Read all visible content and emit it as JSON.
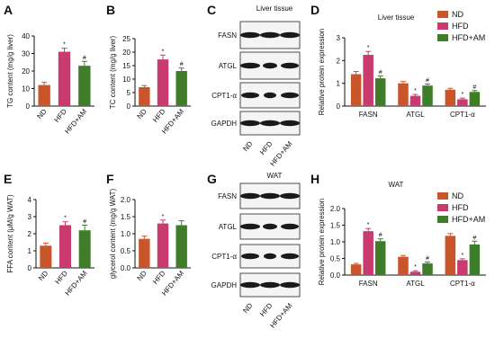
{
  "chart_data": [
    {
      "type": "bar",
      "panel_label": "A",
      "ylabel": "TG content (mg/g liver)",
      "categories": [
        "ND",
        "HFD",
        "HFD+AM"
      ],
      "values": [
        12,
        31,
        23
      ],
      "errors": [
        1.5,
        2,
        2.5
      ],
      "annotations": [
        null,
        "*",
        "#"
      ],
      "colors": [
        "#c9562a",
        "#c93a6e",
        "#3f7d2a"
      ],
      "ylim": [
        0,
        40
      ],
      "yticks": [
        0,
        10,
        20,
        30,
        40
      ]
    },
    {
      "type": "bar",
      "panel_label": "B",
      "ylabel": "TC content (mg/g liver)",
      "categories": [
        "ND",
        "HFD",
        "HFD+AM"
      ],
      "values": [
        7,
        17.3,
        13
      ],
      "errors": [
        0.6,
        1.6,
        1.1
      ],
      "annotations": [
        null,
        "*",
        "#"
      ],
      "colors": [
        "#c9562a",
        "#c93a6e",
        "#3f7d2a"
      ],
      "ylim": [
        0,
        25
      ],
      "yticks": [
        0,
        5,
        10,
        15,
        20,
        25
      ]
    },
    {
      "type": "grouped_bar",
      "panel_label": "D",
      "title": "Liver tissue",
      "ylabel": "Relative protein expression",
      "categories": [
        "FASN",
        "ATGL",
        "CPT1-α"
      ],
      "series": [
        {
          "name": "ND",
          "color": "#c9562a",
          "values": [
            1.4,
            1.0,
            0.72
          ],
          "errors": [
            0.12,
            0.08,
            0.06
          ],
          "annotations": [
            null,
            null,
            null
          ]
        },
        {
          "name": "HFD",
          "color": "#c93a6e",
          "values": [
            2.25,
            0.45,
            0.3
          ],
          "errors": [
            0.15,
            0.06,
            0.05
          ],
          "annotations": [
            "*",
            "*",
            "*"
          ]
        },
        {
          "name": "HFD+AM",
          "color": "#3f7d2a",
          "values": [
            1.22,
            0.9,
            0.62
          ],
          "errors": [
            0.1,
            0.07,
            0.06
          ],
          "annotations": [
            "#",
            "#",
            "#"
          ]
        }
      ],
      "ylim": [
        0,
        3
      ],
      "yticks": [
        0,
        1,
        2,
        3
      ]
    },
    {
      "type": "bar",
      "panel_label": "E",
      "ylabel": "FFA content (μM/g WAT)",
      "categories": [
        "ND",
        "HFD",
        "HFD+AM"
      ],
      "values": [
        1.3,
        2.5,
        2.2
      ],
      "errors": [
        0.15,
        0.2,
        0.3
      ],
      "annotations": [
        null,
        "*",
        "#"
      ],
      "colors": [
        "#c9562a",
        "#c93a6e",
        "#3f7d2a"
      ],
      "ylim": [
        0,
        4
      ],
      "yticks": [
        0,
        1,
        2,
        3,
        4
      ]
    },
    {
      "type": "bar",
      "panel_label": "F",
      "ylabel": "glycerol content (mg/g WAT)",
      "categories": [
        "ND",
        "HFD",
        "HFD+AM"
      ],
      "values": [
        0.85,
        1.3,
        1.25
      ],
      "errors": [
        0.08,
        0.1,
        0.13
      ],
      "annotations": [
        null,
        "*",
        null
      ],
      "colors": [
        "#c9562a",
        "#c93a6e",
        "#3f7d2a"
      ],
      "ylim": [
        0,
        2
      ],
      "yticks": [
        {
          "value": 0,
          "label": "0.0"
        },
        {
          "value": 0.5,
          "label": "0.5"
        },
        {
          "value": 1,
          "label": "1.0"
        },
        {
          "value": 1.5,
          "label": "1.5"
        },
        {
          "value": 2,
          "label": "2.0"
        }
      ]
    },
    {
      "type": "grouped_bar",
      "panel_label": "H",
      "title": "WAT",
      "ylabel": "Relative protein expression",
      "categories": [
        "FASN",
        "ATGL",
        "CPT1-α"
      ],
      "series": [
        {
          "name": "ND",
          "color": "#c9562a",
          "values": [
            0.32,
            0.55,
            1.18
          ],
          "errors": [
            0.03,
            0.04,
            0.07
          ],
          "annotations": [
            null,
            null,
            null
          ]
        },
        {
          "name": "HFD",
          "color": "#c93a6e",
          "values": [
            1.32,
            0.1,
            0.45
          ],
          "errors": [
            0.08,
            0.03,
            0.04
          ],
          "annotations": [
            "*",
            "*",
            "*"
          ]
        },
        {
          "name": "HFD+AM",
          "color": "#3f7d2a",
          "values": [
            1.02,
            0.35,
            0.92
          ],
          "errors": [
            0.07,
            0.04,
            0.1
          ],
          "annotations": [
            "#",
            "#",
            "#"
          ]
        }
      ],
      "ylim": [
        0,
        2
      ],
      "yticks": [
        {
          "value": 0,
          "label": "0.0"
        },
        {
          "value": 0.5,
          "label": "0.5"
        },
        {
          "value": 1,
          "label": "1.0"
        },
        {
          "value": 1.5,
          "label": "1.5"
        },
        {
          "value": 2,
          "label": "2.0"
        }
      ]
    }
  ],
  "blots": [
    {
      "panel_label": "C",
      "title": "Liver tissue",
      "proteins": [
        "FASN",
        "ATGL",
        "CPT1-α",
        "GAPDH"
      ],
      "lanes": [
        "ND",
        "HFD",
        "HFD+AM"
      ]
    },
    {
      "panel_label": "G",
      "title": "WAT",
      "proteins": [
        "FASN",
        "ATGL",
        "CPT1-α",
        "GAPDH"
      ],
      "lanes": [
        "ND",
        "HFD",
        "HFD+AM"
      ]
    }
  ]
}
